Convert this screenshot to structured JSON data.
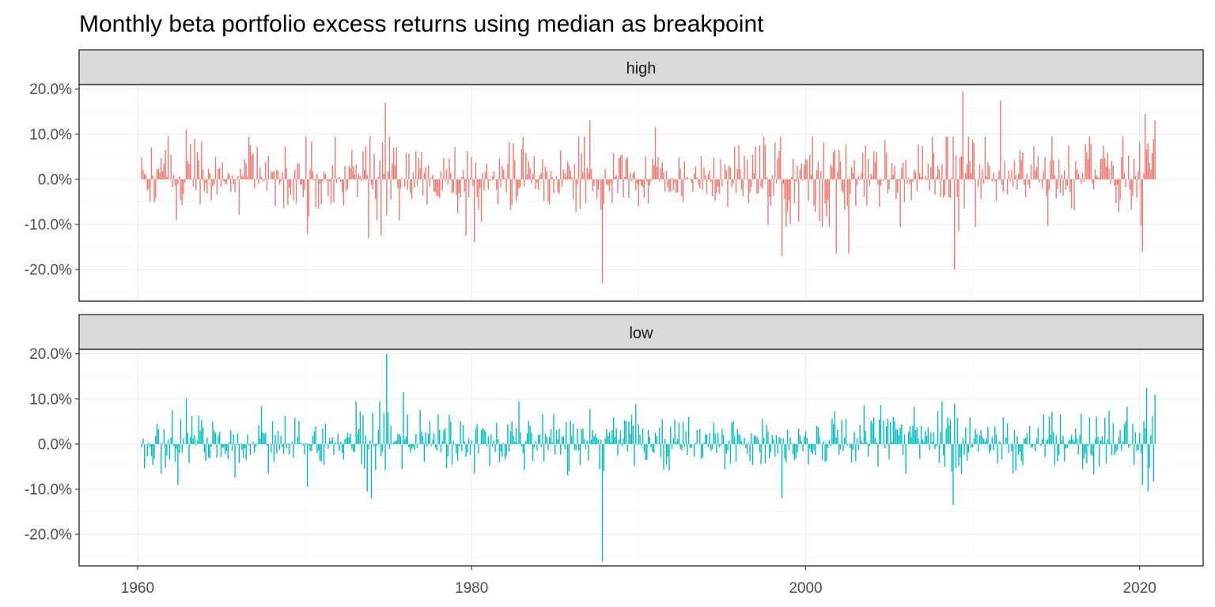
{
  "chart_data": {
    "type": "bar",
    "title": "Monthly beta portfolio excess returns using median as breakpoint",
    "xlabel": "",
    "ylabel": "",
    "xlim": [
      1956.5,
      2023.8
    ],
    "ylim": [
      -0.27,
      0.21
    ],
    "x_ticks": [
      1960,
      1980,
      2000,
      2020
    ],
    "x_tick_labels": [
      "1960",
      "1980",
      "2000",
      "2020"
    ],
    "y_ticks": [
      -0.2,
      -0.1,
      0.0,
      0.1,
      0.2
    ],
    "y_tick_labels": [
      "-20.0%",
      "-10.0%",
      "0.0%",
      "10.0%",
      "20.0%"
    ],
    "grid": true,
    "legend": "none",
    "panels": [
      {
        "name": "high",
        "color": "#F8766D",
        "key_points": [
          {
            "x": 1962.3,
            "y": -0.09
          },
          {
            "x": 1962.9,
            "y": 0.11
          },
          {
            "x": 1970.2,
            "y": -0.12
          },
          {
            "x": 1973.8,
            "y": -0.13
          },
          {
            "x": 1974.6,
            "y": -0.125
          },
          {
            "x": 1974.8,
            "y": 0.17
          },
          {
            "x": 1979.7,
            "y": -0.125
          },
          {
            "x": 1980.2,
            "y": -0.14
          },
          {
            "x": 1987.8,
            "y": -0.23
          },
          {
            "x": 1987.1,
            "y": 0.13
          },
          {
            "x": 1991.0,
            "y": 0.115
          },
          {
            "x": 1998.6,
            "y": -0.17
          },
          {
            "x": 2001.8,
            "y": -0.165
          },
          {
            "x": 2002.6,
            "y": -0.165
          },
          {
            "x": 2008.9,
            "y": -0.2
          },
          {
            "x": 2009.2,
            "y": -0.115
          },
          {
            "x": 2009.4,
            "y": 0.195
          },
          {
            "x": 2011.7,
            "y": 0.175
          },
          {
            "x": 2020.2,
            "y": -0.16
          },
          {
            "x": 2020.3,
            "y": 0.145
          },
          {
            "x": 2020.9,
            "y": 0.13
          }
        ]
      },
      {
        "name": "low",
        "color": "#00BFC4",
        "key_points": [
          {
            "x": 1962.4,
            "y": -0.09
          },
          {
            "x": 1962.9,
            "y": 0.1
          },
          {
            "x": 1970.2,
            "y": -0.095
          },
          {
            "x": 1974.0,
            "y": -0.12
          },
          {
            "x": 1974.9,
            "y": 0.2
          },
          {
            "x": 1975.9,
            "y": 0.115
          },
          {
            "x": 1980.2,
            "y": -0.065
          },
          {
            "x": 1982.8,
            "y": 0.095
          },
          {
            "x": 1987.8,
            "y": -0.26
          },
          {
            "x": 1998.6,
            "y": -0.12
          },
          {
            "x": 2008.8,
            "y": -0.135
          },
          {
            "x": 2020.2,
            "y": -0.09
          },
          {
            "x": 2020.4,
            "y": 0.125
          },
          {
            "x": 2020.9,
            "y": 0.11
          }
        ]
      }
    ]
  }
}
